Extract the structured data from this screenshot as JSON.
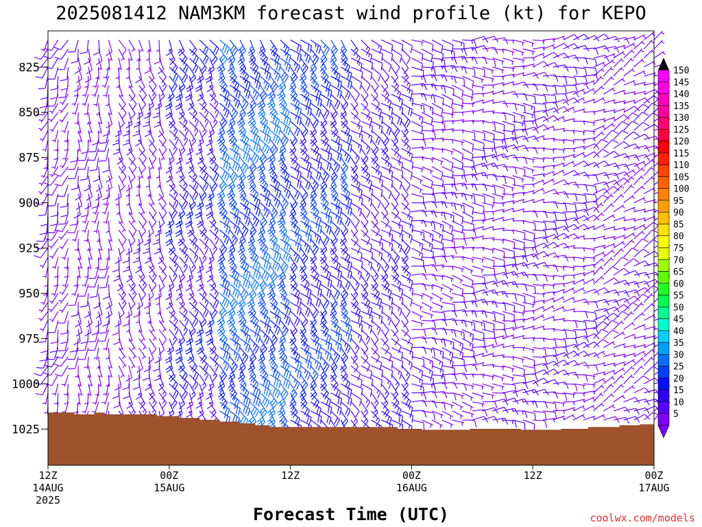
{
  "chart_data": {
    "type": "wind-barb-timeheight",
    "title": "2025081412 NAM3KM forecast wind profile (kt) for KEPO",
    "xlabel": "Forecast Time (UTC)",
    "credit": "coolwx.com/models",
    "y_axis": {
      "label": "",
      "ticks": [
        825,
        850,
        875,
        900,
        925,
        950,
        975,
        1000,
        1025
      ],
      "range_hpa": [
        805,
        1045
      ],
      "inverted": true
    },
    "x_axis": {
      "range_hours": [
        0,
        60
      ],
      "ticks": [
        {
          "hour": 0,
          "lines": [
            "12Z",
            "14AUG",
            "2025"
          ]
        },
        {
          "hour": 12,
          "lines": [
            "00Z",
            "15AUG"
          ]
        },
        {
          "hour": 24,
          "lines": [
            "12Z"
          ]
        },
        {
          "hour": 36,
          "lines": [
            "00Z",
            "16AUG"
          ]
        },
        {
          "hour": 48,
          "lines": [
            "12Z"
          ]
        },
        {
          "hour": 60,
          "lines": [
            "00Z",
            "17AUG"
          ]
        }
      ]
    },
    "colorbar": {
      "values": [
        5,
        10,
        15,
        20,
        25,
        30,
        35,
        40,
        45,
        50,
        55,
        60,
        65,
        70,
        75,
        80,
        85,
        90,
        95,
        100,
        105,
        110,
        115,
        120,
        125,
        130,
        135,
        140,
        145,
        150
      ],
      "colors": [
        "#7f00ff",
        "#5a00ff",
        "#3000ff",
        "#0010ff",
        "#0040ff",
        "#0070ff",
        "#00a0ff",
        "#00d0ff",
        "#00ffd0",
        "#00ff90",
        "#00ff50",
        "#20ff20",
        "#60ff00",
        "#a0ff00",
        "#e0ff00",
        "#ffff00",
        "#ffe000",
        "#ffc000",
        "#ffa000",
        "#ff8000",
        "#ff6000",
        "#ff4000",
        "#ff2000",
        "#ff0000",
        "#ff0040",
        "#ff0070",
        "#ff00a0",
        "#ff00c0",
        "#ff00e0",
        "#ff00ff"
      ]
    },
    "terrain": {
      "color": "#a0522d",
      "surface_pressure": [
        {
          "hour": 0,
          "hpa": 1016
        },
        {
          "hour": 2.6,
          "hpa": 1017
        },
        {
          "hour": 4.6,
          "hpa": 1016
        },
        {
          "hour": 5.6,
          "hpa": 1017
        },
        {
          "hour": 10.8,
          "hpa": 1018
        },
        {
          "hour": 13.0,
          "hpa": 1019
        },
        {
          "hour": 15.0,
          "hpa": 1020
        },
        {
          "hour": 17.0,
          "hpa": 1021
        },
        {
          "hour": 19.0,
          "hpa": 1022
        },
        {
          "hour": 20.5,
          "hpa": 1023
        },
        {
          "hour": 21.9,
          "hpa": 1024
        },
        {
          "hour": 34.6,
          "hpa": 1025
        },
        {
          "hour": 37.0,
          "hpa": 1025.5
        },
        {
          "hour": 41.8,
          "hpa": 1025
        },
        {
          "hour": 46.8,
          "hpa": 1025.5
        },
        {
          "hour": 50.8,
          "hpa": 1025
        },
        {
          "hour": 53.5,
          "hpa": 1024
        },
        {
          "hour": 56.6,
          "hpa": 1023
        },
        {
          "hour": 58.6,
          "hpa": 1022.5
        },
        {
          "hour": 60,
          "hpa": 1022
        }
      ]
    },
    "barbs": {
      "hour_step": 1,
      "pressure_levels": [
        810,
        815,
        820,
        825,
        830,
        835,
        840,
        845,
        850,
        855,
        860,
        865,
        870,
        875,
        880,
        885,
        890,
        895,
        900,
        905,
        910,
        915,
        920,
        925,
        930,
        935,
        940,
        945,
        950,
        955,
        960,
        965,
        970,
        975,
        980,
        985,
        990,
        995,
        1000,
        1005,
        1010,
        1015,
        1020
      ],
      "regime_note": "",
      "regimes": [
        {
          "hours": [
            0,
            3
          ],
          "dir_deg": 200,
          "speed_kt": 7
        },
        {
          "hours": [
            3,
            7
          ],
          "dir_deg": 180,
          "speed_kt": 8
        },
        {
          "hours": [
            7,
            12
          ],
          "dir_deg": 160,
          "speed_kt": 10
        },
        {
          "hours": [
            12,
            17
          ],
          "dir_deg": 150,
          "speed_kt": 17
        },
        {
          "hours": [
            17,
            24
          ],
          "dir_deg": 140,
          "speed_kt": 28
        },
        {
          "hours": [
            24,
            30
          ],
          "dir_deg": 135,
          "speed_kt": 22
        },
        {
          "hours": [
            30,
            36
          ],
          "dir_deg": 130,
          "speed_kt": 14
        },
        {
          "hours": [
            36,
            42
          ],
          "dir_deg": 100,
          "speed_kt": 10
        },
        {
          "hours": [
            42,
            48
          ],
          "dir_deg": 90,
          "speed_kt": 9
        },
        {
          "hours": [
            48,
            54
          ],
          "dir_deg": 80,
          "speed_kt": 8
        },
        {
          "hours": [
            54,
            60
          ],
          "dir_deg": 60,
          "speed_kt": 7
        }
      ]
    }
  }
}
